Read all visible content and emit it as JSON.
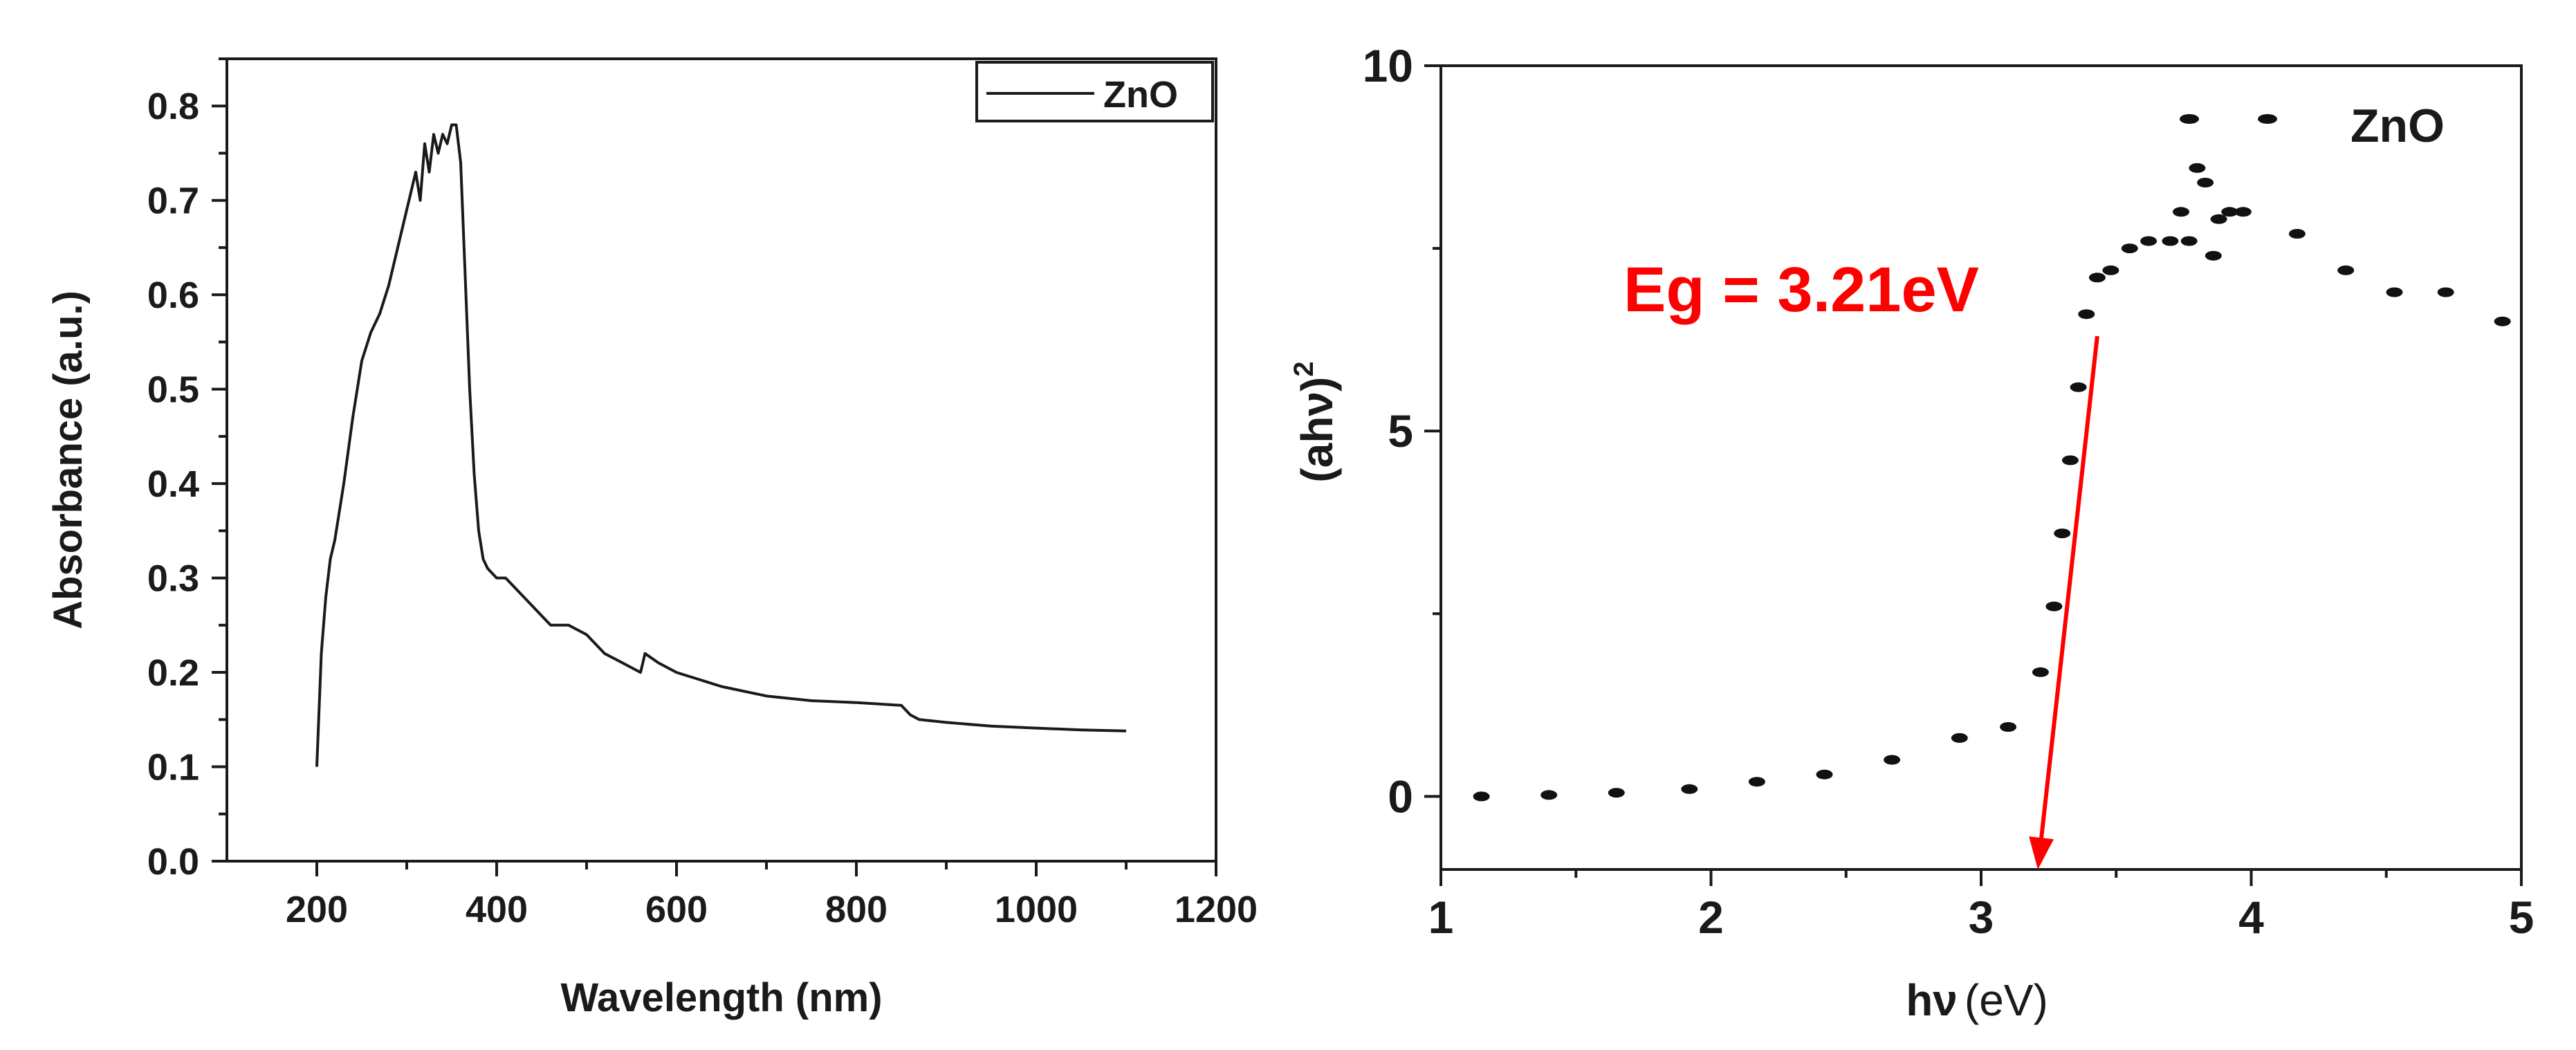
{
  "chart_data": [
    {
      "type": "line",
      "title": "",
      "xlabel": "Wavelength (nm)",
      "ylabel": "Absorbance (a.u.)",
      "xlim": [
        100,
        1200
      ],
      "ylim": [
        0.0,
        0.85
      ],
      "xticks": [
        200,
        400,
        600,
        800,
        1000,
        1200
      ],
      "yticks": [
        0.0,
        0.1,
        0.2,
        0.3,
        0.4,
        0.5,
        0.6,
        0.7,
        0.8
      ],
      "xtick_labels": [
        "200",
        "400",
        "600",
        "800",
        "1000",
        "1200"
      ],
      "ytick_labels": [
        "0.0",
        "0.1",
        "0.2",
        "0.3",
        "0.4",
        "0.5",
        "0.6",
        "0.7",
        "0.8"
      ],
      "legend": {
        "position": "top-right",
        "entries": [
          "ZnO"
        ]
      },
      "series": [
        {
          "name": "ZnO",
          "color": "#1a1a1a",
          "x": [
            200,
            205,
            210,
            215,
            220,
            230,
            240,
            250,
            260,
            270,
            280,
            290,
            300,
            310,
            315,
            320,
            325,
            330,
            335,
            340,
            345,
            350,
            355,
            360,
            365,
            370,
            375,
            380,
            385,
            390,
            395,
            400,
            410,
            420,
            440,
            460,
            480,
            500,
            520,
            540,
            560,
            565,
            580,
            600,
            650,
            700,
            750,
            800,
            850,
            860,
            870,
            900,
            950,
            1000,
            1050,
            1100
          ],
          "y": [
            0.1,
            0.22,
            0.28,
            0.32,
            0.34,
            0.4,
            0.47,
            0.53,
            0.56,
            0.58,
            0.61,
            0.65,
            0.69,
            0.73,
            0.7,
            0.76,
            0.73,
            0.77,
            0.75,
            0.77,
            0.76,
            0.78,
            0.78,
            0.74,
            0.62,
            0.5,
            0.41,
            0.35,
            0.32,
            0.31,
            0.305,
            0.3,
            0.3,
            0.29,
            0.27,
            0.25,
            0.25,
            0.24,
            0.22,
            0.21,
            0.2,
            0.22,
            0.21,
            0.2,
            0.185,
            0.175,
            0.17,
            0.168,
            0.165,
            0.155,
            0.15,
            0.147,
            0.143,
            0.141,
            0.139,
            0.138
          ]
        }
      ]
    },
    {
      "type": "scatter",
      "title": "",
      "xlabel_main": "hν",
      "xlabel_unit": "(eV)",
      "ylabel_main": "(ahν)",
      "ylabel_sup": "2",
      "xlim": [
        1,
        5
      ],
      "ylim": [
        -1,
        10
      ],
      "xticks": [
        1,
        2,
        3,
        4,
        5
      ],
      "yticks": [
        0,
        5,
        10
      ],
      "xtick_labels": [
        "1",
        "2",
        "3",
        "4",
        "5"
      ],
      "ytick_labels": [
        "0",
        "5",
        "10"
      ],
      "legend": {
        "position": "top-right",
        "entries": [
          "ZnO"
        ]
      },
      "series": [
        {
          "name": "ZnO",
          "color": "#111111",
          "x": [
            1.15,
            1.4,
            1.65,
            1.92,
            2.17,
            2.42,
            2.67,
            2.92,
            3.1,
            3.22,
            3.27,
            3.3,
            3.33,
            3.36,
            3.39,
            3.43,
            3.48,
            3.55,
            3.62,
            3.7,
            3.74,
            3.77,
            3.8,
            3.83,
            3.86,
            3.88,
            3.92,
            3.97,
            4.17,
            4.35,
            4.53,
            4.72,
            4.93
          ],
          "y": [
            0.0,
            0.02,
            0.05,
            0.1,
            0.2,
            0.3,
            0.5,
            0.8,
            0.95,
            1.7,
            2.6,
            3.6,
            4.6,
            5.6,
            6.6,
            7.1,
            7.2,
            7.5,
            7.6,
            7.6,
            8.0,
            7.6,
            8.6,
            8.4,
            7.4,
            7.9,
            8.0,
            8.0,
            7.7,
            7.2,
            6.9,
            6.9,
            6.5
          ]
        }
      ],
      "tauc_fit": {
        "x": [
          3.21,
          3.43
        ],
        "y": [
          -1.0,
          6.3
        ],
        "color": "#ff0000"
      },
      "annotation": {
        "text": "Eg = 3.21eV",
        "color": "#ff0000"
      }
    }
  ]
}
